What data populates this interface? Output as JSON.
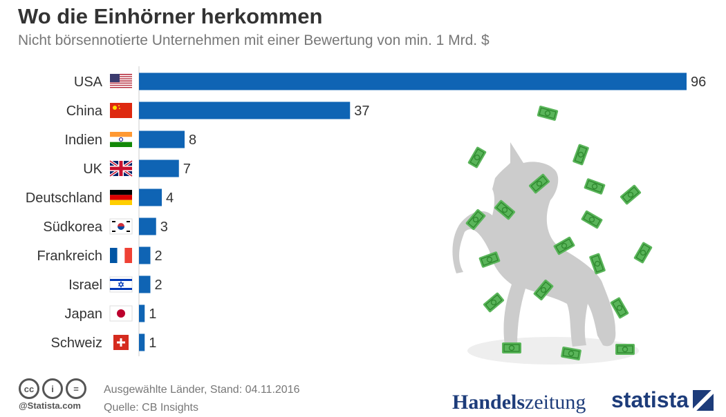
{
  "header": {
    "title": "Wo die Einhörner herkommen",
    "subtitle": "Nicht börsennotierte Unternehmen mit einer Bewertung von min. 1 Mrd. $"
  },
  "chart_data": {
    "type": "bar",
    "orientation": "horizontal",
    "title": "Wo die Einhörner herkommen",
    "subtitle": "Nicht börsennotierte Unternehmen mit einer Bewertung von min. 1 Mrd. $",
    "categories": [
      "USA",
      "China",
      "Indien",
      "UK",
      "Deutschland",
      "Südkorea",
      "Frankreich",
      "Israel",
      "Japan",
      "Schweiz"
    ],
    "values": [
      96,
      37,
      8,
      7,
      4,
      3,
      2,
      2,
      1,
      1
    ],
    "flags": [
      "us-flag-icon",
      "cn-flag-icon",
      "in-flag-icon",
      "uk-flag-icon",
      "de-flag-icon",
      "kr-flag-icon",
      "fr-flag-icon",
      "il-flag-icon",
      "jp-flag-icon",
      "ch-flag-icon"
    ],
    "xlabel": "",
    "ylabel": "",
    "xlim": [
      0,
      96
    ],
    "grid": false,
    "legend": "none",
    "bar_color": "#0f64b4"
  },
  "illustration": {
    "icon": "unicorn-with-money-icon",
    "unicorn_color": "#cccccc",
    "bill_color": "#5ab55a"
  },
  "footer": {
    "note_line1": "Ausgewählte Länder, Stand: 04.11.2016",
    "note_line2": "Quelle: CB Insights",
    "copyright": "@Statista.com",
    "license_icons": [
      "cc-icon",
      "by-icon",
      "nd-icon"
    ],
    "license_glyphs": [
      "cc",
      "i",
      "="
    ],
    "logo_handelszeitung_bold": "Handels",
    "logo_handelszeitung_light": "zeitung",
    "logo_statista": "statista"
  }
}
